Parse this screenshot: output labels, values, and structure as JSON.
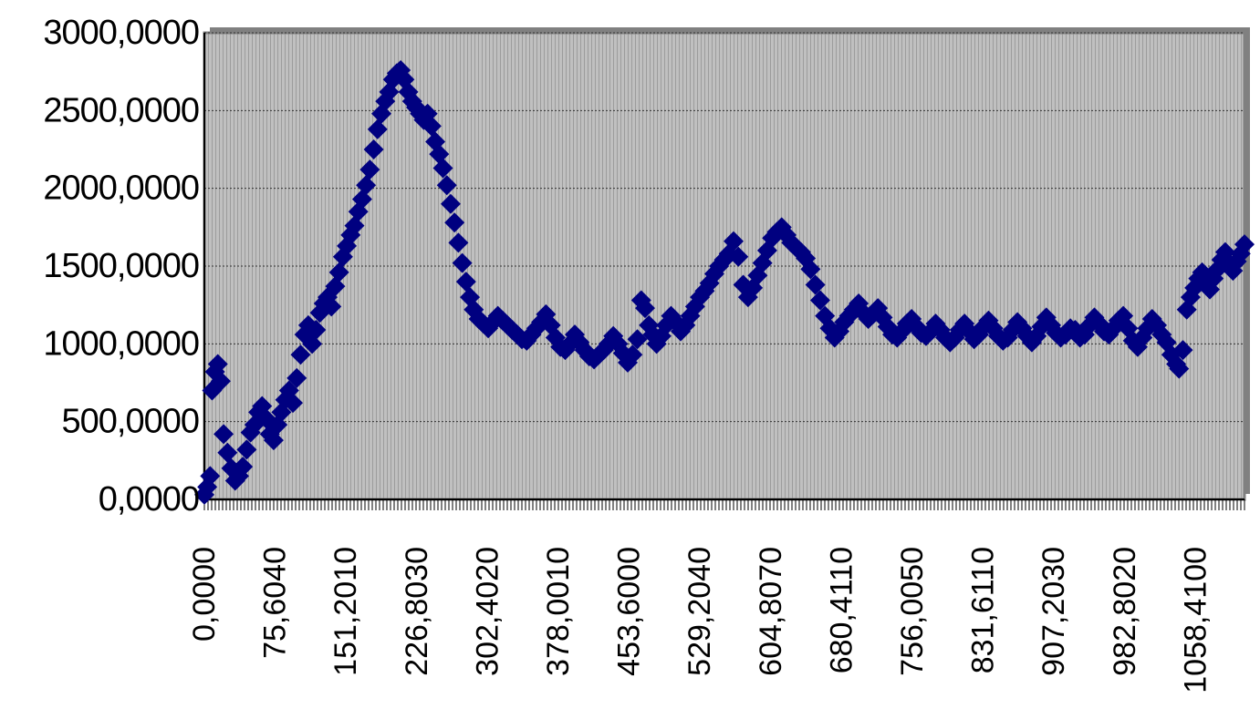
{
  "chart_data": {
    "type": "scatter",
    "title": "",
    "xlabel": "",
    "ylabel": "",
    "ylim": [
      0,
      3000
    ],
    "y_ticks": [
      0,
      500,
      1000,
      1500,
      2000,
      2500,
      3000
    ],
    "y_tick_labels": [
      "0,0000",
      "500,0000",
      "1000,0000",
      "1500,0000",
      "2000,0000",
      "2500,0000",
      "3000,0000"
    ],
    "x_tick_labels": [
      "0,0000",
      "75,6040",
      "151,2010",
      "226,8030",
      "302,4020",
      "378,0010",
      "453,6000",
      "529,2040",
      "604,8070",
      "680,4110",
      "756,0050",
      "831,6110",
      "907,2030",
      "982,8020",
      "1058,4100"
    ],
    "xlim": [
      0,
      1081
    ],
    "grid": true,
    "legend": "none",
    "colors": {
      "marker": "#000080",
      "plot_background": "#c0c0c0",
      "frame": "#808080",
      "text": "#000000"
    },
    "series": [
      {
        "marker": "diamond",
        "points": [
          [
            0,
            30
          ],
          [
            3,
            80
          ],
          [
            6,
            150
          ],
          [
            8,
            700
          ],
          [
            11,
            820
          ],
          [
            14,
            870
          ],
          [
            17,
            760
          ],
          [
            20,
            420
          ],
          [
            24,
            300
          ],
          [
            28,
            200
          ],
          [
            32,
            120
          ],
          [
            36,
            150
          ],
          [
            40,
            210
          ],
          [
            44,
            320
          ],
          [
            48,
            430
          ],
          [
            52,
            480
          ],
          [
            56,
            560
          ],
          [
            60,
            600
          ],
          [
            64,
            520
          ],
          [
            68,
            420
          ],
          [
            72,
            380
          ],
          [
            76,
            480
          ],
          [
            80,
            560
          ],
          [
            84,
            640
          ],
          [
            88,
            700
          ],
          [
            92,
            620
          ],
          [
            96,
            780
          ],
          [
            100,
            930
          ],
          [
            104,
            1060
          ],
          [
            108,
            1120
          ],
          [
            112,
            1000
          ],
          [
            116,
            1090
          ],
          [
            120,
            1200
          ],
          [
            124,
            1260
          ],
          [
            128,
            1300
          ],
          [
            132,
            1240
          ],
          [
            136,
            1370
          ],
          [
            140,
            1460
          ],
          [
            144,
            1560
          ],
          [
            148,
            1630
          ],
          [
            152,
            1700
          ],
          [
            156,
            1760
          ],
          [
            160,
            1850
          ],
          [
            164,
            1930
          ],
          [
            168,
            2020
          ],
          [
            172,
            2120
          ],
          [
            176,
            2250
          ],
          [
            180,
            2380
          ],
          [
            184,
            2480
          ],
          [
            188,
            2560
          ],
          [
            192,
            2620
          ],
          [
            196,
            2700
          ],
          [
            200,
            2740
          ],
          [
            204,
            2760
          ],
          [
            208,
            2700
          ],
          [
            212,
            2620
          ],
          [
            216,
            2560
          ],
          [
            220,
            2520
          ],
          [
            224,
            2480
          ],
          [
            228,
            2440
          ],
          [
            232,
            2480
          ],
          [
            236,
            2400
          ],
          [
            240,
            2300
          ],
          [
            244,
            2220
          ],
          [
            248,
            2130
          ],
          [
            252,
            2020
          ],
          [
            256,
            1900
          ],
          [
            260,
            1780
          ],
          [
            264,
            1650
          ],
          [
            268,
            1520
          ],
          [
            272,
            1400
          ],
          [
            276,
            1300
          ],
          [
            280,
            1220
          ],
          [
            285,
            1160
          ],
          [
            290,
            1130
          ],
          [
            295,
            1100
          ],
          [
            300,
            1140
          ],
          [
            305,
            1180
          ],
          [
            310,
            1150
          ],
          [
            315,
            1120
          ],
          [
            320,
            1090
          ],
          [
            325,
            1060
          ],
          [
            330,
            1030
          ],
          [
            335,
            1020
          ],
          [
            340,
            1060
          ],
          [
            345,
            1100
          ],
          [
            350,
            1140
          ],
          [
            355,
            1190
          ],
          [
            360,
            1120
          ],
          [
            365,
            1040
          ],
          [
            370,
            980
          ],
          [
            375,
            960
          ],
          [
            380,
            1000
          ],
          [
            385,
            1060
          ],
          [
            390,
            1010
          ],
          [
            395,
            960
          ],
          [
            400,
            920
          ],
          [
            405,
            900
          ],
          [
            410,
            930
          ],
          [
            415,
            960
          ],
          [
            420,
            1000
          ],
          [
            425,
            1050
          ],
          [
            430,
            1000
          ],
          [
            435,
            940
          ],
          [
            440,
            880
          ],
          [
            445,
            930
          ],
          [
            450,
            1030
          ],
          [
            454,
            1280
          ],
          [
            458,
            1230
          ],
          [
            462,
            1120
          ],
          [
            466,
            1060
          ],
          [
            470,
            1000
          ],
          [
            475,
            1050
          ],
          [
            480,
            1120
          ],
          [
            485,
            1180
          ],
          [
            490,
            1140
          ],
          [
            495,
            1080
          ],
          [
            500,
            1120
          ],
          [
            505,
            1180
          ],
          [
            510,
            1240
          ],
          [
            515,
            1300
          ],
          [
            520,
            1340
          ],
          [
            525,
            1390
          ],
          [
            530,
            1450
          ],
          [
            535,
            1500
          ],
          [
            540,
            1540
          ],
          [
            545,
            1580
          ],
          [
            550,
            1660
          ],
          [
            555,
            1560
          ],
          [
            560,
            1380
          ],
          [
            565,
            1300
          ],
          [
            570,
            1360
          ],
          [
            575,
            1440
          ],
          [
            580,
            1520
          ],
          [
            585,
            1600
          ],
          [
            590,
            1680
          ],
          [
            595,
            1720
          ],
          [
            600,
            1750
          ],
          [
            605,
            1700
          ],
          [
            610,
            1650
          ],
          [
            615,
            1620
          ],
          [
            620,
            1590
          ],
          [
            625,
            1550
          ],
          [
            630,
            1480
          ],
          [
            635,
            1380
          ],
          [
            640,
            1280
          ],
          [
            645,
            1180
          ],
          [
            650,
            1100
          ],
          [
            655,
            1040
          ],
          [
            660,
            1080
          ],
          [
            665,
            1140
          ],
          [
            670,
            1180
          ],
          [
            675,
            1220
          ],
          [
            680,
            1260
          ],
          [
            685,
            1200
          ],
          [
            690,
            1160
          ],
          [
            695,
            1190
          ],
          [
            700,
            1230
          ],
          [
            705,
            1170
          ],
          [
            710,
            1110
          ],
          [
            715,
            1060
          ],
          [
            720,
            1040
          ],
          [
            725,
            1080
          ],
          [
            730,
            1130
          ],
          [
            735,
            1160
          ],
          [
            740,
            1110
          ],
          [
            745,
            1070
          ],
          [
            750,
            1050
          ],
          [
            755,
            1080
          ],
          [
            760,
            1130
          ],
          [
            765,
            1090
          ],
          [
            770,
            1040
          ],
          [
            775,
            1010
          ],
          [
            780,
            1040
          ],
          [
            785,
            1090
          ],
          [
            790,
            1130
          ],
          [
            795,
            1080
          ],
          [
            800,
            1030
          ],
          [
            805,
            1060
          ],
          [
            810,
            1110
          ],
          [
            815,
            1150
          ],
          [
            820,
            1100
          ],
          [
            825,
            1050
          ],
          [
            830,
            1020
          ],
          [
            835,
            1040
          ],
          [
            840,
            1090
          ],
          [
            845,
            1140
          ],
          [
            850,
            1100
          ],
          [
            855,
            1050
          ],
          [
            860,
            1010
          ],
          [
            865,
            1050
          ],
          [
            870,
            1110
          ],
          [
            875,
            1170
          ],
          [
            880,
            1120
          ],
          [
            885,
            1070
          ],
          [
            890,
            1040
          ],
          [
            895,
            1060
          ],
          [
            900,
            1100
          ],
          [
            905,
            1090
          ],
          [
            910,
            1040
          ],
          [
            915,
            1060
          ],
          [
            920,
            1120
          ],
          [
            925,
            1170
          ],
          [
            930,
            1130
          ],
          [
            935,
            1080
          ],
          [
            940,
            1060
          ],
          [
            945,
            1100
          ],
          [
            950,
            1150
          ],
          [
            955,
            1180
          ],
          [
            960,
            1100
          ],
          [
            965,
            1020
          ],
          [
            970,
            980
          ],
          [
            975,
            1040
          ],
          [
            980,
            1100
          ],
          [
            985,
            1160
          ],
          [
            990,
            1120
          ],
          [
            995,
            1060
          ],
          [
            1000,
            1010
          ],
          [
            1005,
            930
          ],
          [
            1010,
            870
          ],
          [
            1013,
            840
          ],
          [
            1017,
            960
          ],
          [
            1021,
            1220
          ],
          [
            1025,
            1300
          ],
          [
            1029,
            1360
          ],
          [
            1033,
            1420
          ],
          [
            1037,
            1460
          ],
          [
            1041,
            1400
          ],
          [
            1045,
            1350
          ],
          [
            1049,
            1420
          ],
          [
            1053,
            1480
          ],
          [
            1057,
            1540
          ],
          [
            1061,
            1590
          ],
          [
            1065,
            1520
          ],
          [
            1069,
            1470
          ],
          [
            1073,
            1530
          ],
          [
            1077,
            1580
          ],
          [
            1081,
            1640
          ]
        ]
      }
    ]
  }
}
